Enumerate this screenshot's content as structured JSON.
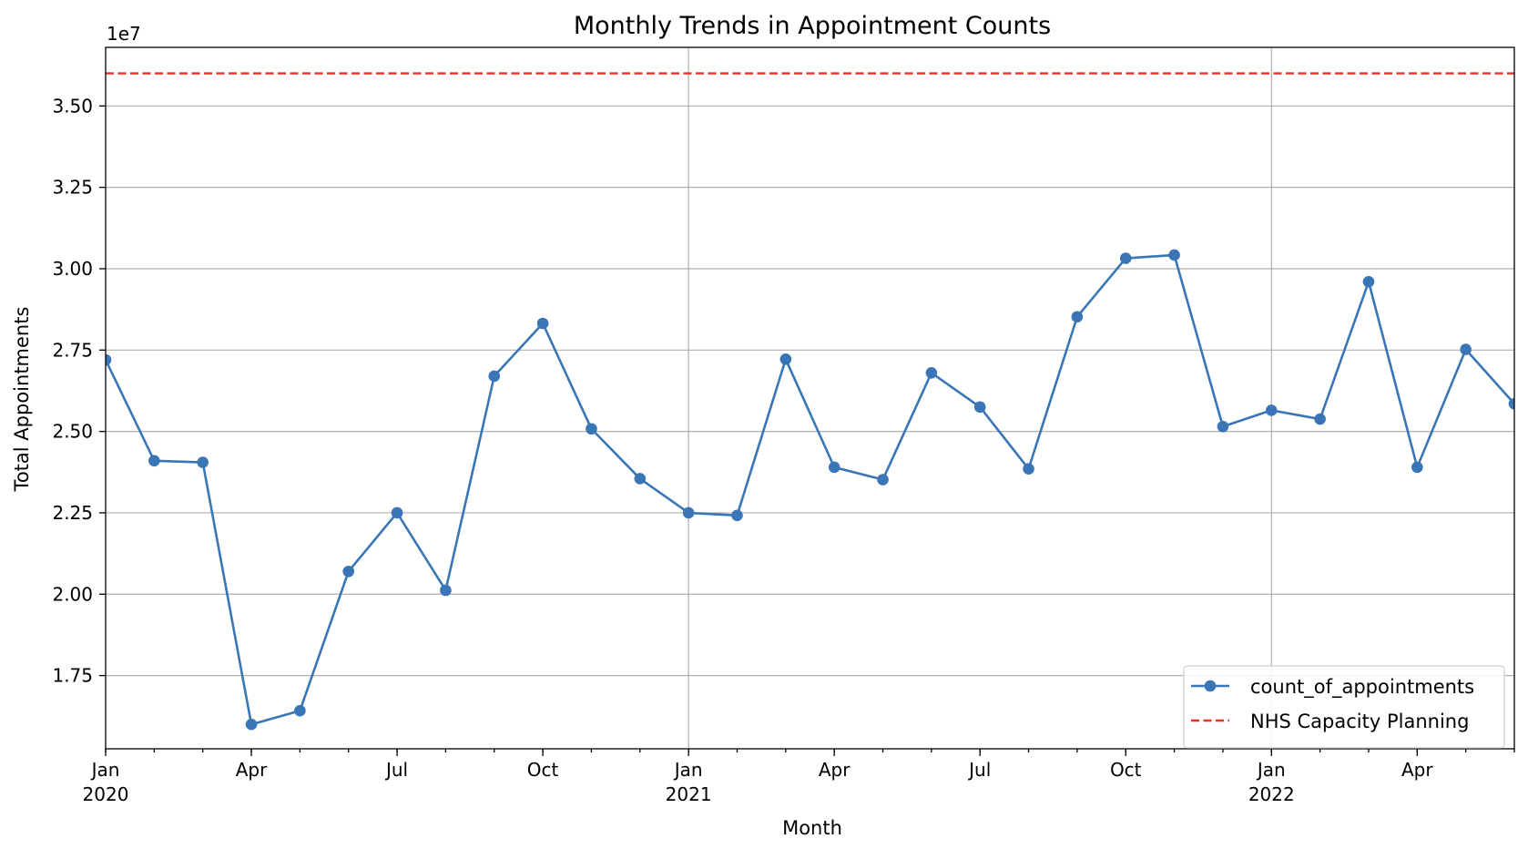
{
  "chart_data": {
    "type": "line",
    "title": "Monthly Trends in Appointment Counts",
    "xlabel": "Month",
    "ylabel": "Total Appointments",
    "y_offset_label": "1e7",
    "y_scale_factor": 10000000,
    "ylim": [
      15250000,
      36800000
    ],
    "xlim": [
      "2020-01",
      "2022-06"
    ],
    "y_ticks": [
      17500000,
      20000000,
      22500000,
      25000000,
      27500000,
      30000000,
      32500000,
      35000000
    ],
    "y_tick_labels": [
      "1.75",
      "2.00",
      "2.25",
      "2.50",
      "2.75",
      "3.00",
      "3.25",
      "3.50"
    ],
    "x_major_ticks": [
      {
        "x": "2020-01",
        "label": "Jan",
        "year": "2020"
      },
      {
        "x": "2020-04",
        "label": "Apr",
        "year": ""
      },
      {
        "x": "2020-07",
        "label": "Jul",
        "year": ""
      },
      {
        "x": "2020-10",
        "label": "Oct",
        "year": ""
      },
      {
        "x": "2021-01",
        "label": "Jan",
        "year": "2021"
      },
      {
        "x": "2021-04",
        "label": "Apr",
        "year": ""
      },
      {
        "x": "2021-07",
        "label": "Jul",
        "year": ""
      },
      {
        "x": "2021-10",
        "label": "Oct",
        "year": ""
      },
      {
        "x": "2022-01",
        "label": "Jan",
        "year": "2022"
      },
      {
        "x": "2022-04",
        "label": "Apr",
        "year": ""
      }
    ],
    "x_gridlines": [
      "2021-01",
      "2022-01"
    ],
    "grid": true,
    "legend": "lower-right",
    "series": [
      {
        "name": "count_of_appointments",
        "color": "#3a76b5",
        "marker": "circle",
        "x": [
          "2020-01",
          "2020-02",
          "2020-03",
          "2020-04",
          "2020-05",
          "2020-06",
          "2020-07",
          "2020-08",
          "2020-09",
          "2020-10",
          "2020-11",
          "2020-12",
          "2021-01",
          "2021-02",
          "2021-03",
          "2021-04",
          "2021-05",
          "2021-06",
          "2021-07",
          "2021-08",
          "2021-09",
          "2021-10",
          "2021-11",
          "2021-12",
          "2022-01",
          "2022-02",
          "2022-03",
          "2022-04",
          "2022-05",
          "2022-06"
        ],
        "values": [
          27200000,
          24100000,
          24050000,
          16000000,
          16420000,
          20700000,
          22500000,
          20120000,
          26700000,
          28320000,
          25080000,
          23550000,
          22500000,
          22420000,
          27220000,
          23900000,
          23520000,
          26800000,
          25750000,
          23850000,
          28520000,
          30320000,
          30420000,
          25150000,
          25650000,
          25380000,
          29600000,
          23900000,
          27520000,
          25850000
        ]
      }
    ],
    "reference_lines": [
      {
        "name": "NHS Capacity Planning",
        "y": 36000000,
        "color": "#e8312a",
        "style": "dashed"
      }
    ]
  }
}
